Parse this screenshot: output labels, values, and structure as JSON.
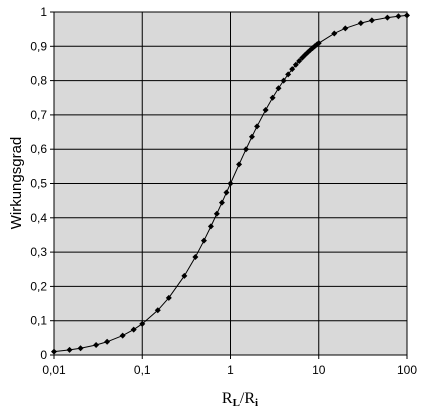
{
  "chart_data": {
    "type": "scatter",
    "xscale": "log",
    "xlim": [
      0.01,
      100
    ],
    "ylim": [
      0,
      1
    ],
    "grid": true,
    "legend": "none",
    "ylabel": "Wirkungsgrad",
    "xlabel": {
      "r1": "R",
      "s1": "L",
      "sep": "/",
      "r2": "R",
      "s2": "i"
    },
    "x_ticks": [
      {
        "value": 0.01,
        "label": "0,01"
      },
      {
        "value": 0.1,
        "label": "0,1"
      },
      {
        "value": 1,
        "label": "1"
      },
      {
        "value": 10,
        "label": "10"
      },
      {
        "value": 100,
        "label": "100"
      }
    ],
    "y_ticks": [
      {
        "value": 0,
        "label": "0"
      },
      {
        "value": 0.1,
        "label": "0,1"
      },
      {
        "value": 0.2,
        "label": "0,2"
      },
      {
        "value": 0.3,
        "label": "0,3"
      },
      {
        "value": 0.4,
        "label": "0,4"
      },
      {
        "value": 0.5,
        "label": "0,5"
      },
      {
        "value": 0.6,
        "label": "0,6"
      },
      {
        "value": 0.7,
        "label": "0,7"
      },
      {
        "value": 0.8,
        "label": "0,8"
      },
      {
        "value": 0.9,
        "label": "0,9"
      },
      {
        "value": 1,
        "label": "1"
      }
    ],
    "x": [
      0.01,
      0.015,
      0.02,
      0.03,
      0.04,
      0.06,
      0.08,
      0.1,
      0.15,
      0.2,
      0.3,
      0.4,
      0.5,
      0.6,
      0.7,
      0.8,
      0.9,
      1,
      1.25,
      1.5,
      1.75,
      2,
      2.5,
      3,
      3.5,
      4,
      4.5,
      5,
      5.5,
      6,
      6.5,
      7,
      7.5,
      8,
      8.5,
      9,
      9.5,
      10,
      15,
      20,
      30,
      40,
      60,
      80,
      100
    ],
    "y": [
      0.0099,
      0.0148,
      0.0196,
      0.0291,
      0.0385,
      0.0566,
      0.0741,
      0.0909,
      0.1304,
      0.1667,
      0.2308,
      0.2857,
      0.3333,
      0.375,
      0.4118,
      0.4444,
      0.4737,
      0.5,
      0.5556,
      0.6,
      0.6364,
      0.6667,
      0.7143,
      0.75,
      0.7778,
      0.8,
      0.8182,
      0.8333,
      0.8462,
      0.8571,
      0.8667,
      0.875,
      0.8824,
      0.8889,
      0.8947,
      0.9,
      0.9048,
      0.9091,
      0.9375,
      0.9524,
      0.9677,
      0.9756,
      0.9836,
      0.9877,
      0.9901
    ],
    "colors": {
      "plot_background": "#d9d9d9",
      "grid": "#000000",
      "series": "#000000"
    },
    "marker": "diamond"
  }
}
